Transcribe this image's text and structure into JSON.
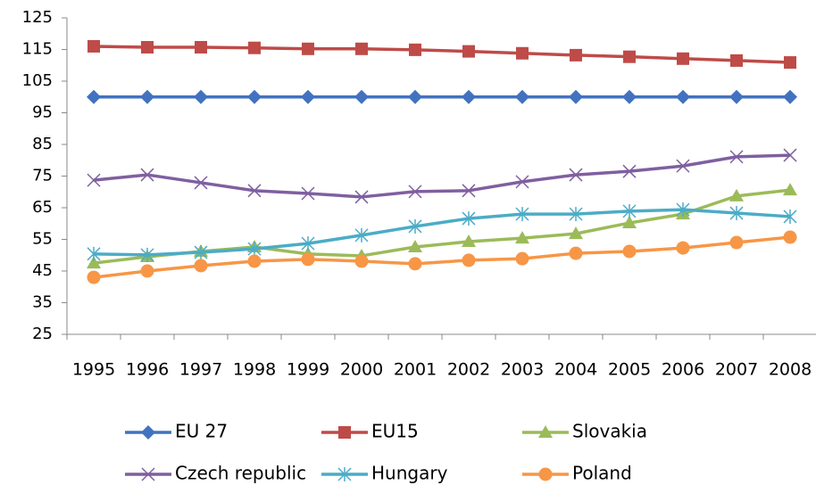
{
  "chart_data": {
    "type": "line",
    "categories": [
      "1995",
      "1996",
      "1997",
      "1998",
      "1999",
      "2000",
      "2001",
      "2002",
      "2003",
      "2004",
      "2005",
      "2006",
      "2007",
      "2008"
    ],
    "ylim": [
      25,
      125
    ],
    "yticks": [
      25,
      35,
      45,
      55,
      65,
      75,
      85,
      95,
      105,
      115,
      125
    ],
    "grid": false,
    "legend": "bottom",
    "series": [
      {
        "name": "EU 27",
        "color": "#4272bf",
        "marker": "diamond",
        "values": [
          100,
          100,
          100,
          100,
          100,
          100,
          100,
          100,
          100,
          100,
          100,
          100,
          100,
          100
        ]
      },
      {
        "name": "EU15",
        "color": "#be4b48",
        "marker": "square",
        "values": [
          116,
          115.7,
          115.7,
          115.5,
          115.2,
          115.2,
          114.9,
          114.4,
          113.8,
          113.2,
          112.7,
          112.1,
          111.5,
          110.9
        ]
      },
      {
        "name": "Slovakia",
        "color": "#9bbb59",
        "marker": "triangle",
        "values": [
          47.5,
          49.5,
          51.2,
          52.6,
          50.4,
          49.8,
          52.6,
          54.3,
          55.4,
          56.8,
          60.2,
          63,
          68.7,
          70.6
        ]
      },
      {
        "name": "Czech republic",
        "color": "#7f5fa0",
        "marker": "x",
        "values": [
          73.7,
          75.4,
          72.9,
          70.4,
          69.5,
          68.4,
          70.1,
          70.4,
          73.2,
          75.4,
          76.5,
          78.2,
          81.1,
          81.6
        ]
      },
      {
        "name": "Hungary",
        "color": "#4bacc6",
        "marker": "star",
        "values": [
          50.4,
          50.1,
          50.9,
          52,
          53.7,
          56.3,
          59.1,
          61.6,
          63,
          63,
          63.9,
          64.4,
          63.3,
          62.2
        ]
      },
      {
        "name": "Poland",
        "color": "#f79646",
        "marker": "circle",
        "values": [
          43,
          45,
          46.7,
          48.1,
          48.7,
          48.1,
          47.3,
          48.4,
          48.9,
          50.6,
          51.2,
          52.3,
          54,
          55.7
        ]
      }
    ]
  }
}
